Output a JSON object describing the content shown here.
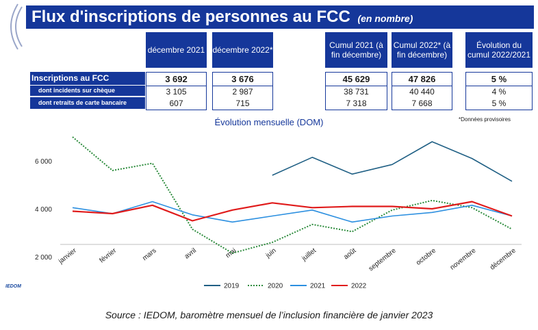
{
  "header": {
    "title": "Flux d'inscriptions de personnes au FCC",
    "subtitle": "(en nombre)"
  },
  "table": {
    "columns": [
      "décembre 2021",
      "décembre 2022*",
      "Cumul 2021 (à fin décembre)",
      "Cumul 2022* (à fin décembre)",
      "Évolution du cumul 2022/2021"
    ],
    "rows": [
      {
        "label": "Inscriptions au FCC",
        "values": [
          "3 692",
          "3 676",
          "45 629",
          "47 826",
          "5 %"
        ]
      },
      {
        "label": "dont incidents sur chèque",
        "values": [
          "3 105",
          "2 987",
          "38 731",
          "40 440",
          "4 %"
        ]
      },
      {
        "label": "dont retraits de carte bancaire",
        "values": [
          "607",
          "715",
          "7 318",
          "7 668",
          "5 %"
        ]
      }
    ]
  },
  "note": "*Données provisoires",
  "source": "Source : IEDOM, baromètre mensuel de l’inclusion financière de janvier 2023",
  "logo": "IEDOM",
  "chart_data": {
    "type": "line",
    "title": "Évolution mensuelle (DOM)",
    "categories": [
      "janvier",
      "février",
      "mars",
      "avril",
      "mai",
      "juin",
      "juillet",
      "août",
      "septembre",
      "octobre",
      "novembre",
      "décembre"
    ],
    "y_ticks": [
      "2 000",
      "4 000",
      "6 000"
    ],
    "ylim": [
      2000,
      7200
    ],
    "grid": false,
    "legend": "bottom",
    "series": [
      {
        "name": "2019",
        "color": "#1f5f84",
        "dash": "solid",
        "values": [
          null,
          null,
          null,
          null,
          null,
          5400,
          6150,
          5450,
          5850,
          6800,
          6100,
          5150
        ]
      },
      {
        "name": "2020",
        "color": "#2a8a3a",
        "dash": "dotted",
        "values": [
          7000,
          5600,
          5900,
          3150,
          2150,
          2600,
          3350,
          3050,
          3950,
          4350,
          4050,
          3150
        ]
      },
      {
        "name": "2021",
        "color": "#2b8fe0",
        "dash": "solid",
        "values": [
          4050,
          3800,
          4300,
          3750,
          3450,
          3700,
          3950,
          3450,
          3700,
          3850,
          4150,
          3700
        ]
      },
      {
        "name": "2022",
        "color": "#e01b1b",
        "dash": "solid",
        "values": [
          3900,
          3800,
          4150,
          3500,
          3950,
          4250,
          4050,
          4100,
          4100,
          4000,
          4300,
          3700
        ]
      }
    ]
  }
}
